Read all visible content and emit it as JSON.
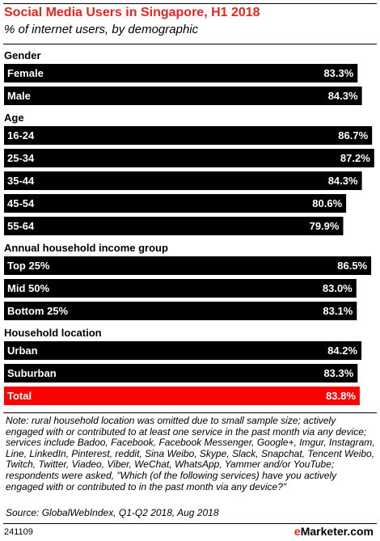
{
  "header": {
    "title": "Social Media Users in Singapore, H1 2018",
    "subtitle": "% of internet users, by demographic"
  },
  "colors": {
    "bar": "#000000",
    "total_bar": "#ff0000",
    "title": "#e5261f",
    "label_text": "#ffffff"
  },
  "chart_data": {
    "type": "bar",
    "orientation": "horizontal",
    "title": "Social Media Users in Singapore, H1 2018",
    "subtitle": "% of internet users, by demographic",
    "xlim": [
      0,
      88
    ],
    "value_suffix": "%",
    "groups": [
      {
        "name": "Gender",
        "bars": [
          {
            "label": "Female",
            "value": 83.3,
            "value_label": "83.3%"
          },
          {
            "label": "Male",
            "value": 84.3,
            "value_label": "84.3%"
          }
        ]
      },
      {
        "name": "Age",
        "bars": [
          {
            "label": "16-24",
            "value": 86.7,
            "value_label": "86.7%"
          },
          {
            "label": "25-34",
            "value": 87.2,
            "value_label": "87.2%"
          },
          {
            "label": "35-44",
            "value": 84.3,
            "value_label": "84.3%"
          },
          {
            "label": "45-54",
            "value": 80.6,
            "value_label": "80.6%"
          },
          {
            "label": "55-64",
            "value": 79.9,
            "value_label": "79.9%"
          }
        ]
      },
      {
        "name": "Annual household income group",
        "bars": [
          {
            "label": "Top 25%",
            "value": 86.5,
            "value_label": "86.5%"
          },
          {
            "label": "Mid 50%",
            "value": 83.0,
            "value_label": "83.0%"
          },
          {
            "label": "Bottom 25%",
            "value": 83.1,
            "value_label": "83.1%"
          }
        ]
      },
      {
        "name": "Household location",
        "bars": [
          {
            "label": "Urban",
            "value": 84.2,
            "value_label": "84.2%"
          },
          {
            "label": "Suburban",
            "value": 83.3,
            "value_label": "83.3%"
          },
          {
            "label": "Total",
            "value": 83.8,
            "value_label": "83.8%",
            "highlight": true
          }
        ]
      }
    ]
  },
  "footer": {
    "note": "Note: rural household location was omitted due to small sample size; actively engaged with or contributed to at least one service in the past month via any device; services include Badoo, Facebook, Facebook Messenger, Google+, Imgur, Instagram, Line, LinkedIn, Pinterest, reddit, Sina Weibo, Skype, Slack, Snapchat, Tencent Weibo, Twitch, Twitter, Viadeo, Viber, WeChat, WhatsApp, Yammer and/or YouTube; respondents were asked, \"Which (of the following services) have you actively engaged with or contributed to in the past month via any device?\"",
    "source": "Source: GlobalWebIndex, Q1-Q2 2018, Aug 2018",
    "chart_id": "241109",
    "brand_e": "e",
    "brand_rest": "Marketer.com"
  }
}
